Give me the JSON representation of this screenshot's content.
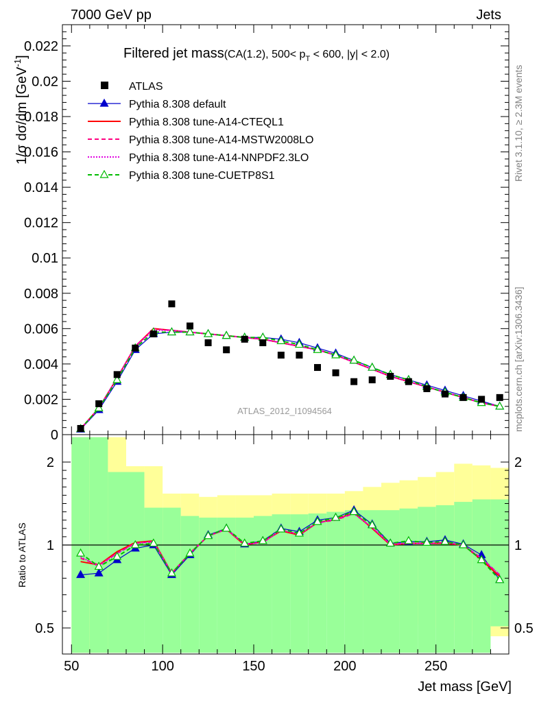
{
  "header": {
    "left": "7000 GeV pp",
    "right": "Jets",
    "side_rivet": "Rivet 3.1.10, ≥ 2.3M events",
    "side_url": "mcplots.cern.ch [arXiv:1306.3436]",
    "analysis_id": "ATLAS_2012_I1094564"
  },
  "chart_data": [
    {
      "panel": "main",
      "type": "line",
      "title": "Filtered jet mass",
      "subtitle_parts": [
        "(CA(1.2), 500< p",
        "T",
        " < 600, |y| < 2.0)"
      ],
      "ylabel": "1/σ dσ/dm [GeV",
      "ylabel_sup": "-1",
      "ylabel_close": "]",
      "ylim": [
        0,
        0.0232
      ],
      "yticks": [
        0,
        0.002,
        0.004,
        0.006,
        0.008,
        0.01,
        0.012,
        0.014,
        0.016,
        0.018,
        0.02,
        0.022
      ],
      "ytick_labels": [
        "0",
        "0.002",
        "0.004",
        "0.006",
        "0.008",
        "0.01",
        "0.012",
        "0.014",
        "0.016",
        "0.018",
        "0.02",
        "0.022"
      ],
      "x": [
        55,
        65,
        75,
        85,
        95,
        105,
        115,
        125,
        135,
        145,
        155,
        165,
        175,
        185,
        195,
        205,
        215,
        225,
        235,
        245,
        255,
        265,
        275,
        285
      ],
      "legend": [
        "ATLAS",
        "Pythia 8.308 default",
        "Pythia 8.308 tune-A14-CTEQL1",
        "Pythia 8.308 tune-A14-MSTW2008LO",
        "Pythia 8.308 tune-A14-NNPDF2.3LO",
        "Pythia 8.308 tune-CUETP8S1"
      ],
      "data": {
        "name": "ATLAS",
        "color": "#000000",
        "values": [
          0.00035,
          0.00175,
          0.0034,
          0.0049,
          0.0057,
          0.0074,
          0.00615,
          0.0052,
          0.0048,
          0.0054,
          0.0052,
          0.0045,
          0.0045,
          0.0038,
          0.0035,
          0.003,
          0.0031,
          0.0033,
          0.003,
          0.0026,
          0.0023,
          0.0021,
          0.002,
          0.0021
        ]
      },
      "series": [
        {
          "name": "Pythia 8.308 default",
          "color": "#0000cc",
          "style": "solid",
          "marker": "triangle-filled",
          "values": [
            0.0003,
            0.0014,
            0.003,
            0.0048,
            0.0057,
            0.0058,
            0.0058,
            0.0057,
            0.0056,
            0.0055,
            0.0055,
            0.0054,
            0.0052,
            0.0049,
            0.0046,
            0.0042,
            0.0038,
            0.0034,
            0.0031,
            0.0028,
            0.0025,
            0.0022,
            0.0019,
            0.0016
          ]
        },
        {
          "name": "Pythia 8.308 tune-A14-CTEQL1",
          "color": "#ff0000",
          "style": "solid",
          "marker": "none",
          "values": [
            0.00033,
            0.0015,
            0.0032,
            0.005,
            0.006,
            0.0059,
            0.0058,
            0.0057,
            0.0056,
            0.0055,
            0.0054,
            0.0052,
            0.005,
            0.0048,
            0.0045,
            0.0041,
            0.0037,
            0.0033,
            0.003,
            0.0027,
            0.0024,
            0.0021,
            0.0018,
            0.0016
          ]
        },
        {
          "name": "Pythia 8.308 tune-A14-MSTW2008LO",
          "color": "#ff0080",
          "style": "dashed",
          "marker": "none",
          "values": [
            0.00032,
            0.0015,
            0.0032,
            0.005,
            0.006,
            0.0059,
            0.0058,
            0.0057,
            0.0056,
            0.0055,
            0.0054,
            0.0052,
            0.005,
            0.0048,
            0.0045,
            0.0041,
            0.0037,
            0.0033,
            0.003,
            0.0027,
            0.0024,
            0.0021,
            0.0018,
            0.0016
          ]
        },
        {
          "name": "Pythia 8.308 tune-A14-NNPDF2.3LO",
          "color": "#e000e0",
          "style": "dotted",
          "marker": "none",
          "values": [
            0.00032,
            0.0015,
            0.0032,
            0.005,
            0.0059,
            0.0059,
            0.0058,
            0.0057,
            0.0056,
            0.0055,
            0.0054,
            0.0052,
            0.005,
            0.0048,
            0.0045,
            0.0041,
            0.0037,
            0.0033,
            0.003,
            0.0027,
            0.0024,
            0.0021,
            0.0018,
            0.0016
          ]
        },
        {
          "name": "Pythia 8.308 tune-CUETP8S1",
          "color": "#00bb00",
          "style": "dashed",
          "marker": "triangle-open",
          "values": [
            0.00033,
            0.0015,
            0.0031,
            0.0049,
            0.0058,
            0.0058,
            0.0058,
            0.0057,
            0.0056,
            0.0055,
            0.0055,
            0.0053,
            0.0051,
            0.0048,
            0.0045,
            0.0042,
            0.0038,
            0.0034,
            0.0031,
            0.0027,
            0.0024,
            0.0021,
            0.0018,
            0.0016
          ]
        }
      ]
    },
    {
      "panel": "ratio",
      "type": "line",
      "ylabel": "Ratio to ATLAS",
      "xlabel": "Jet mass [GeV]",
      "xlim": [
        45,
        290
      ],
      "xticks": [
        50,
        100,
        150,
        200,
        250
      ],
      "xtick_labels": [
        "50",
        "100",
        "150",
        "200",
        "250"
      ],
      "ylim": [
        0.35,
        2.3
      ],
      "yticks": [
        0.5,
        1,
        2
      ],
      "ytick_labels": [
        "0.5",
        "1",
        "2"
      ],
      "bin_edges": [
        50,
        60,
        70,
        80,
        90,
        100,
        110,
        120,
        130,
        140,
        150,
        160,
        170,
        180,
        190,
        200,
        210,
        220,
        230,
        240,
        250,
        260,
        270,
        280,
        290
      ],
      "band_green_low": [
        0.35,
        0.35,
        0.35,
        0.35,
        0.35,
        0.35,
        0.35,
        0.35,
        0.35,
        0.35,
        0.35,
        0.35,
        0.35,
        0.35,
        0.35,
        0.35,
        0.35,
        0.35,
        0.35,
        0.35,
        0.35,
        0.35,
        0.35,
        0.51
      ],
      "band_green_high": [
        2.3,
        2.3,
        1.88,
        1.88,
        1.45,
        1.45,
        1.35,
        1.33,
        1.33,
        1.33,
        1.35,
        1.37,
        1.37,
        1.38,
        1.4,
        1.42,
        1.42,
        1.42,
        1.44,
        1.46,
        1.48,
        1.52,
        1.55,
        1.55
      ],
      "band_yellow_low": [
        0.35,
        0.35,
        0.35,
        0.68,
        0.68,
        0.68,
        0.78,
        0.78,
        0.78,
        0.76,
        0.76,
        0.74,
        0.72,
        0.68,
        0.66,
        0.64,
        0.6,
        0.56,
        0.54,
        0.52,
        0.5,
        0.48,
        0.45,
        0.45
      ],
      "band_yellow_high": [
        2.3,
        2.3,
        2.3,
        1.95,
        1.95,
        1.62,
        1.62,
        1.58,
        1.6,
        1.6,
        1.6,
        1.62,
        1.62,
        1.62,
        1.62,
        1.65,
        1.7,
        1.75,
        1.78,
        1.82,
        1.88,
        1.98,
        1.96,
        1.93
      ],
      "reference": 1,
      "series": [
        {
          "name": "Pythia 8.308 default",
          "color": "#0000cc",
          "style": "solid",
          "marker": "triangle-filled",
          "values": [
            0.82,
            0.83,
            0.91,
            0.98,
            1.0,
            0.82,
            0.94,
            1.12,
            1.2,
            1.01,
            1.05,
            1.2,
            1.16,
            1.3,
            1.33,
            1.42,
            1.25,
            1.02,
            1.04,
            1.04,
            1.06,
            1.01,
            0.94,
            0.79
          ]
        },
        {
          "name": "Pythia 8.308 tune-A14-CTEQL1",
          "color": "#ff0000",
          "style": "solid",
          "marker": "none",
          "values": [
            0.9,
            0.88,
            0.96,
            1.03,
            1.05,
            0.83,
            0.95,
            1.11,
            1.19,
            1.0,
            1.04,
            1.17,
            1.12,
            1.27,
            1.31,
            1.39,
            1.2,
            1.0,
            1.02,
            1.02,
            1.02,
            1.0,
            0.91,
            0.81
          ]
        },
        {
          "name": "Pythia 8.308 tune-A14-MSTW2008LO",
          "color": "#ff0080",
          "style": "dashed",
          "marker": "none",
          "values": [
            0.92,
            0.88,
            0.95,
            1.02,
            1.04,
            0.83,
            0.95,
            1.11,
            1.19,
            1.01,
            1.03,
            1.18,
            1.13,
            1.27,
            1.3,
            1.38,
            1.21,
            1.01,
            1.02,
            1.02,
            1.03,
            1.0,
            0.92,
            0.82
          ]
        },
        {
          "name": "Pythia 8.308 tune-A14-NNPDF2.3LO",
          "color": "#e000e0",
          "style": "dotted",
          "marker": "none",
          "values": [
            0.93,
            0.87,
            0.95,
            1.02,
            1.04,
            0.83,
            0.95,
            1.11,
            1.19,
            1.01,
            1.03,
            1.18,
            1.13,
            1.27,
            1.31,
            1.38,
            1.21,
            1.01,
            1.02,
            1.02,
            1.03,
            1.0,
            0.92,
            0.82
          ]
        },
        {
          "name": "Pythia 8.308 tune-CUETP8S1",
          "color": "#00bb00",
          "style": "dashed",
          "marker": "triangle-open",
          "values": [
            0.95,
            0.87,
            0.93,
            1.0,
            1.02,
            0.83,
            0.95,
            1.11,
            1.2,
            1.02,
            1.05,
            1.19,
            1.14,
            1.28,
            1.33,
            1.4,
            1.24,
            1.02,
            1.05,
            1.03,
            1.04,
            1.0,
            0.91,
            0.79
          ]
        }
      ]
    }
  ]
}
